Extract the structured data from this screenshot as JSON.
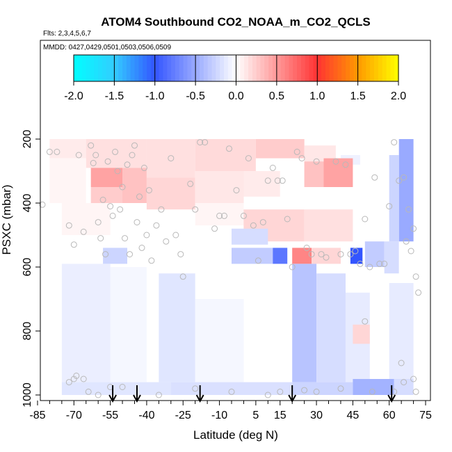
{
  "chart_data": {
    "type": "heatmap",
    "title": "ATOM4 Southbound CO2_NOAA_m_CO2_QCLS",
    "flights_label": "Flts: 2,3,4,5,6,7",
    "dates_label": "MMDD: 0427,0429,0501,0503,0506,0509",
    "xlabel": "Latitude (deg N)",
    "ylabel": "PSXC (mbar)",
    "xlim": [
      -87,
      77
    ],
    "ylim": [
      1010,
      50
    ],
    "x_ticks": [
      -85,
      -70,
      -55,
      -40,
      -25,
      -10,
      5,
      15,
      30,
      45,
      60,
      75
    ],
    "x_tick_labels": [
      "-85",
      "-70",
      "-55",
      "-40",
      "-25",
      "-10",
      "5",
      "15",
      "30",
      "45",
      "60",
      "75"
    ],
    "x_minor_ticks": [
      -80,
      -75,
      -65,
      -60,
      -50,
      -45,
      -35,
      -30,
      -20,
      -15,
      -5,
      0,
      10,
      20,
      25,
      35,
      40,
      50,
      55,
      65,
      70
    ],
    "y_ticks": [
      200,
      400,
      600,
      800,
      1000
    ],
    "y_tick_labels": [
      "200",
      "400",
      "600",
      "800",
      "1000"
    ],
    "colorbar": {
      "min": -2.0,
      "max": 2.0,
      "ticks": [
        -2.0,
        -1.5,
        -1.0,
        -0.5,
        0.0,
        0.5,
        1.0,
        1.5,
        2.0
      ],
      "tick_labels": [
        "-2.0",
        "-1.5",
        "-1.0",
        "-0.5",
        "0.0",
        "0.5",
        "1.0",
        "1.5",
        "2.0"
      ],
      "colors": [
        "#00ffff",
        "#33ccff",
        "#3355ff",
        "#ffffff",
        "#ff3333",
        "#ff9900",
        "#ffff00"
      ]
    },
    "arrows_lat": [
      -54,
      -44,
      -18,
      20,
      61
    ],
    "cells": [
      {
        "lat": [
          -80,
          -65
        ],
        "p": [
          200,
          260
        ],
        "v": 0.1
      },
      {
        "lat": [
          -65,
          -40
        ],
        "p": [
          200,
          290
        ],
        "v": 0.15
      },
      {
        "lat": [
          -40,
          -20
        ],
        "p": [
          200,
          320
        ],
        "v": 0.15
      },
      {
        "lat": [
          -20,
          5
        ],
        "p": [
          200,
          300
        ],
        "v": 0.18
      },
      {
        "lat": [
          5,
          25
        ],
        "p": [
          200,
          260
        ],
        "v": 0.25
      },
      {
        "lat": [
          25,
          38
        ],
        "p": [
          220,
          270
        ],
        "v": 0.12
      },
      {
        "lat": [
          40,
          48
        ],
        "p": [
          250,
          280
        ],
        "v": -0.08
      },
      {
        "lat": [
          -80,
          -65
        ],
        "p": [
          260,
          400
        ],
        "v": 0.05
      },
      {
        "lat": [
          -63,
          -50
        ],
        "p": [
          290,
          350
        ],
        "v": 0.45
      },
      {
        "lat": [
          -63,
          -50
        ],
        "p": [
          350,
          400
        ],
        "v": 0.25
      },
      {
        "lat": [
          -50,
          -40
        ],
        "p": [
          290,
          400
        ],
        "v": 0.3
      },
      {
        "lat": [
          -40,
          -20
        ],
        "p": [
          320,
          420
        ],
        "v": 0.2
      },
      {
        "lat": [
          -20,
          0
        ],
        "p": [
          300,
          400
        ],
        "v": 0.12
      },
      {
        "lat": [
          0,
          15
        ],
        "p": [
          300,
          380
        ],
        "v": 0.1
      },
      {
        "lat": [
          25,
          33
        ],
        "p": [
          270,
          350
        ],
        "v": 0.3
      },
      {
        "lat": [
          33,
          45
        ],
        "p": [
          260,
          350
        ],
        "v": 0.45
      },
      {
        "lat": [
          -75,
          -55
        ],
        "p": [
          400,
          500
        ],
        "v": 0.05
      },
      {
        "lat": [
          -20,
          0
        ],
        "p": [
          400,
          470
        ],
        "v": 0.05
      },
      {
        "lat": [
          0,
          25
        ],
        "p": [
          420,
          520
        ],
        "v": 0.2
      },
      {
        "lat": [
          25,
          45
        ],
        "p": [
          420,
          520
        ],
        "v": 0.15
      },
      {
        "lat": [
          -5,
          10
        ],
        "p": [
          480,
          530
        ],
        "v": -0.2
      },
      {
        "lat": [
          -58,
          -48
        ],
        "p": [
          540,
          590
        ],
        "v": -0.25
      },
      {
        "lat": [
          -5,
          12
        ],
        "p": [
          540,
          590
        ],
        "v": -0.3
      },
      {
        "lat": [
          12,
          18
        ],
        "p": [
          540,
          590
        ],
        "v": -0.8
      },
      {
        "lat": [
          20,
          28
        ],
        "p": [
          540,
          590
        ],
        "v": 0.6
      },
      {
        "lat": [
          28,
          40
        ],
        "p": [
          540,
          590
        ],
        "v": 0.2
      },
      {
        "lat": [
          44,
          49
        ],
        "p": [
          540,
          590
        ],
        "v": -1.0
      },
      {
        "lat": [
          50,
          58
        ],
        "p": [
          520,
          600
        ],
        "v": -0.3
      },
      {
        "lat": [
          58,
          64
        ],
        "p": [
          520,
          620
        ],
        "v": -0.2
      },
      {
        "lat": [
          64,
          70
        ],
        "p": [
          200,
          520
        ],
        "v": -0.5
      },
      {
        "lat": [
          60,
          64
        ],
        "p": [
          250,
          520
        ],
        "v": -0.25
      },
      {
        "lat": [
          -75,
          -55
        ],
        "p": [
          590,
          960
        ],
        "v": -0.1
      },
      {
        "lat": [
          -55,
          -40
        ],
        "p": [
          600,
          960
        ],
        "v": -0.05
      },
      {
        "lat": [
          -35,
          -20
        ],
        "p": [
          620,
          960
        ],
        "v": -0.15
      },
      {
        "lat": [
          -20,
          0
        ],
        "p": [
          700,
          960
        ],
        "v": -0.05
      },
      {
        "lat": [
          20,
          30
        ],
        "p": [
          590,
          960
        ],
        "v": -0.35
      },
      {
        "lat": [
          30,
          42
        ],
        "p": [
          620,
          960
        ],
        "v": -0.2
      },
      {
        "lat": [
          42,
          52
        ],
        "p": [
          680,
          960
        ],
        "v": -0.12
      },
      {
        "lat": [
          45,
          52
        ],
        "p": [
          780,
          840
        ],
        "v": 0.2
      },
      {
        "lat": [
          60,
          70
        ],
        "p": [
          650,
          960
        ],
        "v": -0.12
      },
      {
        "lat": [
          -75,
          -30
        ],
        "p": [
          960,
          1000
        ],
        "v": -0.15
      },
      {
        "lat": [
          -30,
          20
        ],
        "p": [
          960,
          1000
        ],
        "v": -0.18
      },
      {
        "lat": [
          20,
          45
        ],
        "p": [
          960,
          1000
        ],
        "v": -0.25
      },
      {
        "lat": [
          45,
          62
        ],
        "p": [
          950,
          1000
        ],
        "v": -0.45
      },
      {
        "lat": [
          62,
          70
        ],
        "p": [
          950,
          1000
        ],
        "v": -0.2
      }
    ],
    "points": [
      [
        -80,
        240
      ],
      [
        -77,
        240
      ],
      [
        -83,
        405
      ],
      [
        -72,
        470
      ],
      [
        -70,
        530
      ],
      [
        -68,
        250
      ],
      [
        -66,
        490
      ],
      [
        -63,
        220
      ],
      [
        -62,
        275
      ],
      [
        -61,
        250
      ],
      [
        -60,
        460
      ],
      [
        -59,
        510
      ],
      [
        -58,
        390
      ],
      [
        -57,
        560
      ],
      [
        -56,
        270
      ],
      [
        -55,
        410
      ],
      [
        -54,
        440
      ],
      [
        -53,
        240
      ],
      [
        -52,
        300
      ],
      [
        -51,
        420
      ],
      [
        -50,
        350
      ],
      [
        -49,
        510
      ],
      [
        -48,
        280
      ],
      [
        -47,
        560
      ],
      [
        -46,
        250
      ],
      [
        -45,
        220
      ],
      [
        -44,
        460
      ],
      [
        -43,
        380
      ],
      [
        -42,
        540
      ],
      [
        -41,
        290
      ],
      [
        -40,
        500
      ],
      [
        -39,
        360
      ],
      [
        -38,
        580
      ],
      [
        -36,
        470
      ],
      [
        -34,
        420
      ],
      [
        -32,
        520
      ],
      [
        -30,
        260
      ],
      [
        -28,
        500
      ],
      [
        -26,
        560
      ],
      [
        -25,
        630
      ],
      [
        -22,
        340
      ],
      [
        -20,
        420
      ],
      [
        -18,
        210
      ],
      [
        -16,
        210
      ],
      [
        -12,
        480
      ],
      [
        -10,
        440
      ],
      [
        -8,
        440
      ],
      [
        -6,
        230
      ],
      [
        -3,
        360
      ],
      [
        0,
        440
      ],
      [
        2,
        260
      ],
      [
        4,
        470
      ],
      [
        6,
        580
      ],
      [
        8,
        460
      ],
      [
        10,
        330
      ],
      [
        12,
        290
      ],
      [
        14,
        330
      ],
      [
        16,
        330
      ],
      [
        18,
        450
      ],
      [
        20,
        600
      ],
      [
        22,
        240
      ],
      [
        24,
        260
      ],
      [
        26,
        540
      ],
      [
        28,
        560
      ],
      [
        30,
        270
      ],
      [
        32,
        560
      ],
      [
        34,
        570
      ],
      [
        38,
        270
      ],
      [
        40,
        560
      ],
      [
        42,
        280
      ],
      [
        44,
        560
      ],
      [
        46,
        550
      ],
      [
        48,
        590
      ],
      [
        50,
        450
      ],
      [
        52,
        600
      ],
      [
        54,
        320
      ],
      [
        56,
        590
      ],
      [
        58,
        590
      ],
      [
        60,
        410
      ],
      [
        62,
        210
      ],
      [
        64,
        330
      ],
      [
        65,
        900
      ],
      [
        66,
        320
      ],
      [
        67,
        520
      ],
      [
        68,
        420
      ],
      [
        69,
        550
      ],
      [
        70,
        480
      ],
      [
        71,
        630
      ],
      [
        72,
        680
      ],
      [
        -72,
        960
      ],
      [
        -70,
        950
      ],
      [
        -69,
        940
      ],
      [
        -66,
        950
      ],
      [
        -64,
        990
      ],
      [
        -60,
        1000
      ],
      [
        -55,
        975
      ],
      [
        -50,
        975
      ],
      [
        -35,
        1000
      ],
      [
        -20,
        980
      ],
      [
        -5,
        990
      ],
      [
        10,
        1000
      ],
      [
        15,
        990
      ],
      [
        25,
        985
      ],
      [
        30,
        990
      ],
      [
        40,
        980
      ],
      [
        50,
        770
      ],
      [
        53,
        990
      ],
      [
        62,
        990
      ],
      [
        66,
        960
      ],
      [
        70,
        950
      ],
      [
        71,
        990
      ]
    ]
  }
}
